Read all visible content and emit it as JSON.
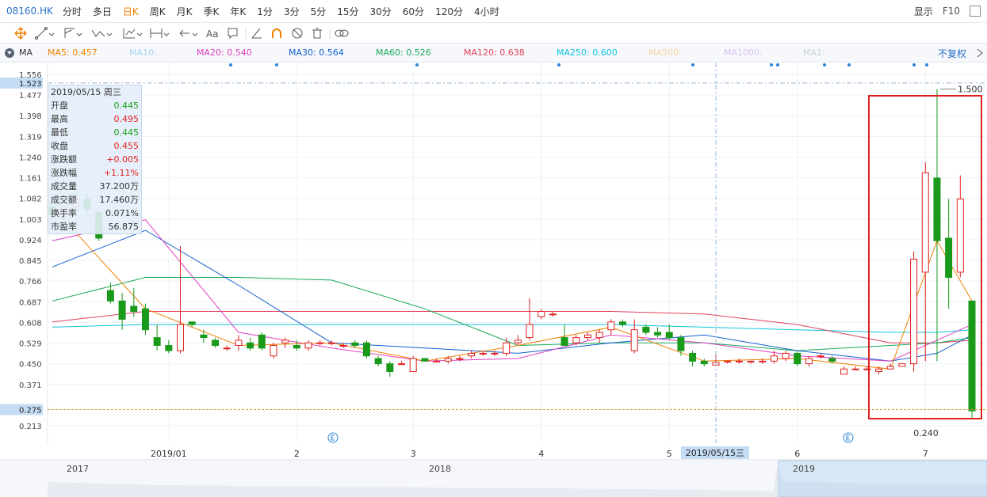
{
  "toolbar": {
    "symbol": "08160.HK",
    "periods": [
      "分时",
      "多日",
      "日K",
      "周K",
      "月K",
      "季K",
      "年K",
      "1分",
      "3分",
      "5分",
      "15分",
      "30分",
      "60分",
      "120分",
      "4小时"
    ],
    "active_period": 2,
    "display": "显示",
    "f10": "F10",
    "text_tool": "Aa"
  },
  "indicator_bar": {
    "name": "MA",
    "items": [
      {
        "label": "MA5: 0.457",
        "color": "#f08000"
      },
      {
        "label": "MA10:",
        "color": "#a9d2f0"
      },
      {
        "label": "MA20: 0.540",
        "color": "#e040c0"
      },
      {
        "label": "MA30: 0.564",
        "color": "#1060d0"
      },
      {
        "label": "MA60: 0.526",
        "color": "#18a858"
      },
      {
        "label": "MA120: 0.638",
        "color": "#e0405a"
      },
      {
        "label": "MA250: 0.600",
        "color": "#10c4e0"
      },
      {
        "label": "MA500:",
        "color": "#f3d59e"
      },
      {
        "label": "MA1000:",
        "color": "#d9c2ef"
      },
      {
        "label": "MA1:",
        "color": "#c8d2dc"
      }
    ],
    "adjust": "不复权"
  },
  "info_panel": {
    "date": "2019/05/15 周三",
    "rows": [
      {
        "label": "开盘",
        "value": "0.445",
        "color": "#16a016"
      },
      {
        "label": "最高",
        "value": "0.495",
        "color": "#e02020"
      },
      {
        "label": "最低",
        "value": "0.445",
        "color": "#16a016"
      },
      {
        "label": "收盘",
        "value": "0.455",
        "color": "#e02020"
      },
      {
        "label": "涨跌额",
        "value": "+0.005",
        "color": "#e02020"
      },
      {
        "label": "涨跌幅",
        "value": "+1.11%",
        "color": "#e02020"
      },
      {
        "label": "成交量",
        "value": "37.200万",
        "color": "#333333"
      },
      {
        "label": "成交额",
        "value": "17.460万",
        "color": "#333333"
      },
      {
        "label": "换手率",
        "value": "0.071%",
        "color": "#333333"
      },
      {
        "label": "市盈率",
        "value": "56.875",
        "color": "#333333"
      }
    ]
  },
  "chart_data": {
    "type": "candlestick",
    "up_color": "#e02020",
    "down_color": "#1a9a1a",
    "grid": true,
    "ylim": [
      0.213,
      1.556
    ],
    "yticks": [
      1.556,
      1.477,
      1.398,
      1.319,
      {
        "value": 1.24,
        "label": "1.240"
      },
      1.161,
      1.082,
      1.003,
      0.924,
      0.845,
      0.766,
      0.687,
      0.608,
      0.529,
      {
        "value": 0.45,
        "label": "0.450"
      },
      0.371,
      0.213
    ],
    "crosshair_price": 1.523,
    "last_price": 0.275,
    "max_marker": {
      "value": 1.5,
      "label": "1.500"
    },
    "min_marker": {
      "value": 0.24,
      "label": "0.240"
    },
    "cursor_index": 57,
    "categories": [
      null,
      null,
      null,
      null,
      null,
      null,
      null,
      null,
      null,
      null,
      "2019/01",
      null,
      null,
      null,
      null,
      null,
      null,
      null,
      null,
      null,
      null,
      "2",
      null,
      null,
      null,
      null,
      null,
      null,
      null,
      null,
      null,
      "3",
      null,
      null,
      null,
      null,
      null,
      null,
      null,
      null,
      null,
      null,
      "4",
      null,
      null,
      null,
      null,
      null,
      null,
      null,
      null,
      null,
      null,
      "5",
      null,
      null,
      null,
      "2019/05/15三",
      null,
      null,
      null,
      null,
      null,
      null,
      "6",
      null,
      null,
      null,
      null,
      null,
      null,
      null,
      null,
      null,
      null,
      "7",
      null,
      null,
      null,
      null
    ],
    "candles": [
      [
        1.05,
        1.09,
        1.0,
        1.02
      ],
      [
        1.02,
        1.06,
        1.0,
        1.05
      ],
      [
        1.05,
        1.09,
        1.03,
        1.08
      ],
      [
        1.08,
        1.1,
        1.02,
        1.04
      ],
      [
        1.03,
        1.04,
        0.92,
        0.93
      ],
      [
        0.73,
        0.76,
        0.68,
        0.69
      ],
      [
        0.69,
        0.72,
        0.58,
        0.62
      ],
      [
        0.67,
        0.74,
        0.63,
        0.65
      ],
      [
        0.66,
        0.68,
        0.56,
        0.58
      ],
      [
        0.55,
        0.6,
        0.5,
        0.52
      ],
      [
        0.52,
        0.54,
        0.49,
        0.5
      ],
      [
        0.5,
        0.9,
        0.49,
        0.6
      ],
      [
        0.61,
        0.61,
        0.59,
        0.6
      ],
      [
        0.56,
        0.58,
        0.53,
        0.55
      ],
      [
        0.54,
        0.55,
        0.51,
        0.52
      ],
      [
        0.51,
        0.52,
        0.5,
        0.51
      ],
      [
        0.52,
        0.56,
        0.5,
        0.54
      ],
      [
        0.53,
        0.55,
        0.5,
        0.51
      ],
      [
        0.56,
        0.57,
        0.5,
        0.51
      ],
      [
        0.48,
        0.53,
        0.47,
        0.52
      ],
      [
        0.53,
        0.55,
        0.51,
        0.54
      ],
      [
        0.52,
        0.54,
        0.5,
        0.51
      ],
      [
        0.51,
        0.54,
        0.5,
        0.53
      ],
      [
        0.53,
        0.54,
        0.52,
        0.53
      ],
      [
        0.53,
        0.54,
        0.52,
        0.53
      ],
      [
        0.52,
        0.53,
        0.51,
        0.52
      ],
      [
        0.53,
        0.54,
        0.51,
        0.52
      ],
      [
        0.53,
        0.54,
        0.47,
        0.48
      ],
      [
        0.47,
        0.48,
        0.44,
        0.45
      ],
      [
        0.45,
        0.46,
        0.4,
        0.42
      ],
      [
        0.45,
        0.46,
        0.45,
        0.45
      ],
      [
        0.42,
        0.48,
        0.42,
        0.47
      ],
      [
        0.47,
        0.47,
        0.46,
        0.46
      ],
      [
        0.46,
        0.47,
        0.46,
        0.46
      ],
      [
        0.46,
        0.48,
        0.45,
        0.47
      ],
      [
        0.47,
        0.48,
        0.46,
        0.47
      ],
      [
        0.48,
        0.5,
        0.47,
        0.49
      ],
      [
        0.49,
        0.5,
        0.48,
        0.49
      ],
      [
        0.49,
        0.5,
        0.48,
        0.49
      ],
      [
        0.49,
        0.55,
        0.48,
        0.53
      ],
      [
        0.53,
        0.56,
        0.52,
        0.54
      ],
      [
        0.55,
        0.7,
        0.54,
        0.6
      ],
      [
        0.63,
        0.66,
        0.62,
        0.65
      ],
      [
        0.64,
        0.65,
        0.63,
        0.64
      ],
      [
        0.55,
        0.6,
        0.52,
        0.52
      ],
      [
        0.53,
        0.56,
        0.52,
        0.55
      ],
      [
        0.55,
        0.57,
        0.54,
        0.56
      ],
      [
        0.55,
        0.58,
        0.53,
        0.57
      ],
      [
        0.58,
        0.62,
        0.56,
        0.61
      ],
      [
        0.61,
        0.62,
        0.59,
        0.6
      ],
      [
        0.5,
        0.62,
        0.49,
        0.58
      ],
      [
        0.59,
        0.6,
        0.56,
        0.57
      ],
      [
        0.57,
        0.59,
        0.55,
        0.56
      ],
      [
        0.57,
        0.6,
        0.54,
        0.55
      ],
      [
        0.55,
        0.56,
        0.48,
        0.5
      ],
      [
        0.49,
        0.5,
        0.44,
        0.46
      ],
      [
        0.46,
        0.47,
        0.44,
        0.45
      ],
      [
        0.445,
        0.495,
        0.445,
        0.455
      ],
      [
        0.46,
        0.46,
        0.45,
        0.46
      ],
      [
        0.46,
        0.47,
        0.45,
        0.46
      ],
      [
        0.46,
        0.46,
        0.45,
        0.46
      ],
      [
        0.46,
        0.47,
        0.45,
        0.46
      ],
      [
        0.46,
        0.5,
        0.45,
        0.48
      ],
      [
        0.47,
        0.5,
        0.46,
        0.49
      ],
      [
        0.49,
        0.5,
        0.44,
        0.45
      ],
      [
        0.45,
        0.48,
        0.44,
        0.47
      ],
      [
        0.48,
        0.49,
        0.47,
        0.48
      ],
      [
        0.47,
        0.48,
        0.45,
        0.46
      ],
      [
        0.41,
        0.44,
        0.41,
        0.43
      ],
      [
        0.43,
        0.44,
        0.43,
        0.43
      ],
      [
        0.43,
        0.44,
        0.43,
        0.43
      ],
      [
        0.42,
        0.44,
        0.41,
        0.43
      ],
      [
        0.43,
        0.45,
        0.43,
        0.44
      ],
      [
        0.44,
        0.45,
        0.44,
        0.45
      ],
      [
        0.45,
        0.88,
        0.42,
        0.85
      ],
      [
        0.8,
        1.22,
        0.46,
        1.18
      ],
      [
        1.16,
        1.5,
        0.46,
        0.92
      ],
      [
        0.93,
        1.08,
        0.66,
        0.78
      ],
      [
        0.8,
        1.17,
        0.78,
        1.08
      ],
      [
        0.69,
        0.69,
        0.24,
        0.27
      ]
    ],
    "lines": [
      {
        "color": "#10c4e0",
        "x": [
          0,
          8,
          16,
          24,
          32,
          40,
          48,
          56,
          64,
          72,
          76,
          79
        ],
        "values": [
          0.59,
          0.6,
          0.6,
          0.6,
          0.6,
          0.6,
          0.6,
          0.59,
          0.58,
          0.57,
          0.57,
          0.58
        ]
      },
      {
        "color": "#e0405a",
        "x": [
          0,
          8,
          16,
          24,
          32,
          40,
          48,
          56,
          64,
          72,
          76,
          79
        ],
        "values": [
          0.61,
          0.65,
          0.65,
          0.65,
          0.65,
          0.65,
          0.65,
          0.64,
          0.6,
          0.53,
          0.53,
          0.54
        ]
      },
      {
        "color": "#18a858",
        "x": [
          0,
          8,
          16,
          24,
          32,
          40,
          48,
          56,
          64,
          72,
          76,
          79
        ],
        "values": [
          0.69,
          0.78,
          0.78,
          0.77,
          0.66,
          0.52,
          0.53,
          0.53,
          0.5,
          0.52,
          0.53,
          0.55
        ]
      },
      {
        "color": "#1060d0",
        "x": [
          0,
          8,
          16,
          24,
          32,
          40,
          48,
          56,
          64,
          72,
          76,
          79
        ],
        "values": [
          0.82,
          0.96,
          0.75,
          0.53,
          0.51,
          0.49,
          0.53,
          0.56,
          0.5,
          0.46,
          0.49,
          0.56
        ]
      },
      {
        "color": "#e040c0",
        "x": [
          0,
          8,
          16,
          24,
          32,
          40,
          48,
          56,
          64,
          72,
          76,
          79
        ],
        "values": [
          0.92,
          1.0,
          0.57,
          0.51,
          0.46,
          0.47,
          0.56,
          0.53,
          0.48,
          0.46,
          0.54,
          0.6
        ]
      },
      {
        "color": "#f08000",
        "x": [
          0,
          8,
          16,
          24,
          32,
          40,
          48,
          56,
          64,
          72,
          76,
          79
        ],
        "values": [
          1.05,
          0.66,
          0.52,
          0.53,
          0.46,
          0.52,
          0.59,
          0.46,
          0.47,
          0.43,
          0.92,
          0.69
        ]
      }
    ]
  },
  "navigator": {
    "labels": [
      "2017",
      "2018",
      "2019"
    ]
  }
}
